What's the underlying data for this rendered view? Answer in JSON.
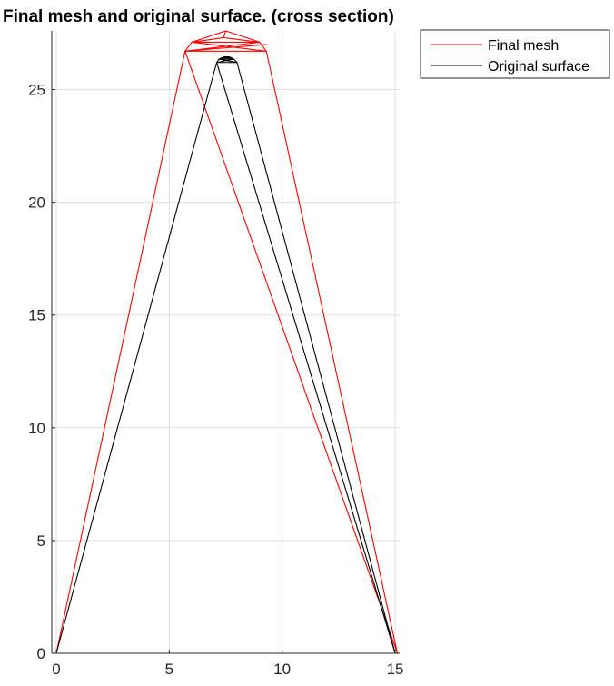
{
  "chart_data": {
    "type": "line",
    "title": "Final mesh and original surface. (cross section)",
    "xlabel": "",
    "ylabel": "",
    "xlim": [
      -0.2,
      15.2
    ],
    "ylim": [
      0,
      27.6
    ],
    "xticks": [
      0,
      5,
      10,
      15
    ],
    "yticks": [
      0,
      5,
      10,
      15,
      20,
      25
    ],
    "grid": true,
    "legend_position": "outside-top-right",
    "series": [
      {
        "name": "Final mesh",
        "color": "#ff0000",
        "segments": [
          [
            [
              0,
              0
            ],
            [
              15.1,
              0
            ]
          ],
          [
            [
              0,
              0
            ],
            [
              5.7,
              26.7
            ]
          ],
          [
            [
              5.7,
              26.7
            ],
            [
              15.1,
              0
            ]
          ],
          [
            [
              15.1,
              0
            ],
            [
              9.3,
              26.7
            ]
          ],
          [
            [
              5.7,
              26.7
            ],
            [
              9.3,
              26.7
            ]
          ],
          [
            [
              5.7,
              26.7
            ],
            [
              6.0,
              27.1
            ]
          ],
          [
            [
              6.0,
              27.1
            ],
            [
              7.5,
              27.6
            ]
          ],
          [
            [
              7.5,
              27.6
            ],
            [
              9.0,
              27.1
            ]
          ],
          [
            [
              9.0,
              27.1
            ],
            [
              9.3,
              26.7
            ]
          ],
          [
            [
              6.0,
              27.1
            ],
            [
              9.0,
              27.1
            ]
          ],
          [
            [
              6.0,
              27.1
            ],
            [
              7.4,
              27.3
            ]
          ],
          [
            [
              7.4,
              27.3
            ],
            [
              9.0,
              27.1
            ]
          ],
          [
            [
              7.4,
              27.3
            ],
            [
              7.5,
              27.6
            ]
          ],
          [
            [
              5.7,
              26.7
            ],
            [
              9.0,
              27.1
            ]
          ],
          [
            [
              6.0,
              27.1
            ],
            [
              9.3,
              26.7
            ]
          ],
          [
            [
              5.7,
              26.7
            ],
            [
              9.3,
              27.0
            ]
          ]
        ]
      },
      {
        "name": "Original surface",
        "color": "#000000",
        "segments": [
          [
            [
              0,
              0
            ],
            [
              15.0,
              0
            ]
          ],
          [
            [
              0,
              0
            ],
            [
              7.1,
              26.2
            ]
          ],
          [
            [
              7.1,
              26.2
            ],
            [
              15.0,
              0
            ]
          ],
          [
            [
              15.0,
              0
            ],
            [
              8.0,
              26.2
            ]
          ],
          [
            [
              7.1,
              26.2
            ],
            [
              8.0,
              26.2
            ]
          ],
          [
            [
              7.1,
              26.2
            ],
            [
              7.2,
              26.35
            ]
          ],
          [
            [
              7.2,
              26.35
            ],
            [
              7.45,
              26.45
            ]
          ],
          [
            [
              7.45,
              26.45
            ],
            [
              7.65,
              26.45
            ]
          ],
          [
            [
              7.65,
              26.45
            ],
            [
              7.85,
              26.35
            ]
          ],
          [
            [
              7.85,
              26.35
            ],
            [
              8.0,
              26.2
            ]
          ],
          [
            [
              7.2,
              26.35
            ],
            [
              7.85,
              26.35
            ]
          ],
          [
            [
              7.3,
              26.4
            ],
            [
              7.75,
              26.4
            ]
          ],
          [
            [
              7.1,
              26.2
            ],
            [
              7.85,
              26.35
            ]
          ],
          [
            [
              7.2,
              26.35
            ],
            [
              8.0,
              26.2
            ]
          ],
          [
            [
              7.3,
              26.4
            ],
            [
              7.65,
              26.45
            ]
          ],
          [
            [
              7.45,
              26.45
            ],
            [
              7.75,
              26.4
            ]
          ]
        ]
      }
    ]
  }
}
